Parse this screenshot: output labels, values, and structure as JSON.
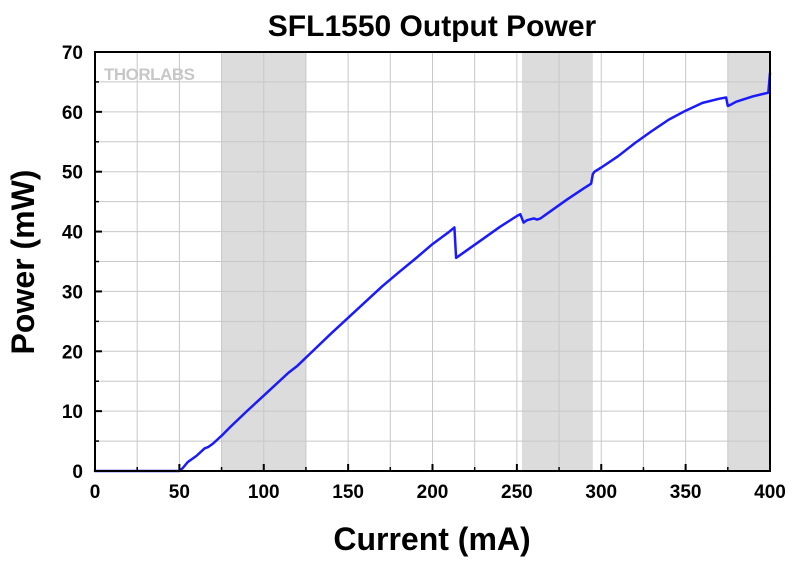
{
  "chart_data": {
    "type": "line",
    "title": "SFL1550 Output Power",
    "xlabel": "Current (mA)",
    "ylabel": "Power (mW)",
    "xlim": [
      0,
      400
    ],
    "ylim": [
      0,
      70
    ],
    "xticks": [
      0,
      50,
      100,
      150,
      200,
      250,
      300,
      350,
      400
    ],
    "yticks": [
      0,
      10,
      20,
      30,
      40,
      50,
      60,
      70
    ],
    "grid": true,
    "watermark": "THORLABS",
    "shaded_regions": [
      [
        75,
        125
      ],
      [
        253,
        295
      ],
      [
        375,
        400
      ]
    ],
    "series": [
      {
        "color": "#1a1aff",
        "x": [
          0,
          50,
          52,
          55,
          60,
          65,
          67,
          70,
          75,
          80,
          90,
          100,
          110,
          115,
          120,
          130,
          140,
          150,
          160,
          170,
          180,
          190,
          200,
          210,
          213,
          214,
          215,
          220,
          230,
          240,
          250,
          252,
          254,
          255,
          256,
          260,
          262,
          264,
          270,
          280,
          290,
          294,
          295,
          296,
          300,
          310,
          320,
          330,
          340,
          350,
          360,
          370,
          374,
          375,
          376,
          380,
          390,
          399,
          400
        ],
        "y": [
          0,
          0,
          0.5,
          1.5,
          2.5,
          3.8,
          4.0,
          4.6,
          5.9,
          7.3,
          10.0,
          12.6,
          15.2,
          16.5,
          17.6,
          20.3,
          23.0,
          25.6,
          28.2,
          30.8,
          33.2,
          35.5,
          37.9,
          40.0,
          40.7,
          35.6,
          35.8,
          36.8,
          38.8,
          40.8,
          42.6,
          42.9,
          41.5,
          41.7,
          41.9,
          42.2,
          42.0,
          42.2,
          43.4,
          45.4,
          47.3,
          48.0,
          49.6,
          50.0,
          50.7,
          52.6,
          54.8,
          56.8,
          58.7,
          60.2,
          61.5,
          62.2,
          62.4,
          61.0,
          61.1,
          61.7,
          62.6,
          63.2,
          66.5
        ]
      }
    ]
  }
}
